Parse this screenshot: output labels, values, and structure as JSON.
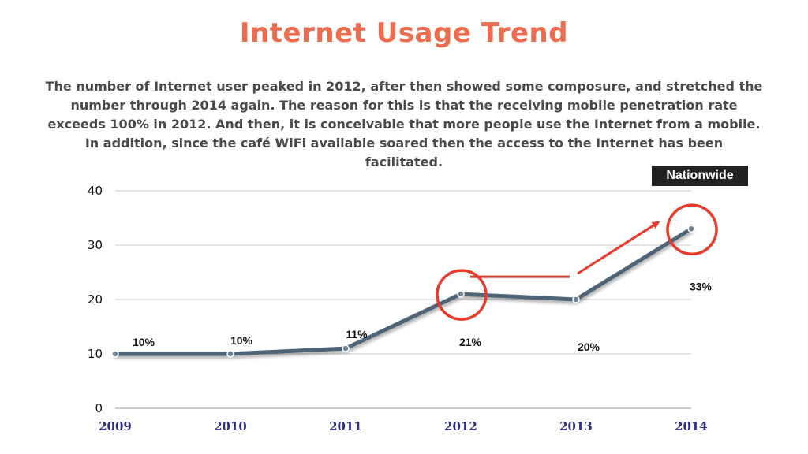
{
  "slide": {
    "title": "Internet Usage Trend",
    "description": "The number of Internet user peaked in 2012, after then showed some composure, and stretched the number through 2014 again. The reason for this is that the receiving mobile penetration rate exceeds 100% in 2012. And then, it is conceivable that more people use the Internet from a mobile. In addition, since the café WiFi available soared then the access to the Internet has been facilitated.",
    "badge": "Nationwide"
  },
  "colors": {
    "title": "#ee6b4d",
    "line": "#4f6577",
    "highlight": "#e8392b",
    "x_tick": "#2e2a86",
    "badge_bg": "#222222"
  },
  "chart_data": {
    "type": "line",
    "categories": [
      "2009",
      "2010",
      "2011",
      "2012",
      "2013",
      "2014"
    ],
    "series": [
      {
        "values": [
          10,
          10,
          11,
          21,
          20,
          33
        ]
      }
    ],
    "data_labels": [
      "10%",
      "10%",
      "11%",
      "21%",
      "20%",
      "33%"
    ],
    "y_ticks": [
      0,
      10,
      20,
      30,
      40
    ],
    "ylim": [
      0,
      40
    ],
    "grid": true,
    "highlighted_categories": [
      "2012",
      "2014"
    ],
    "xlabel": "",
    "ylabel": ""
  }
}
